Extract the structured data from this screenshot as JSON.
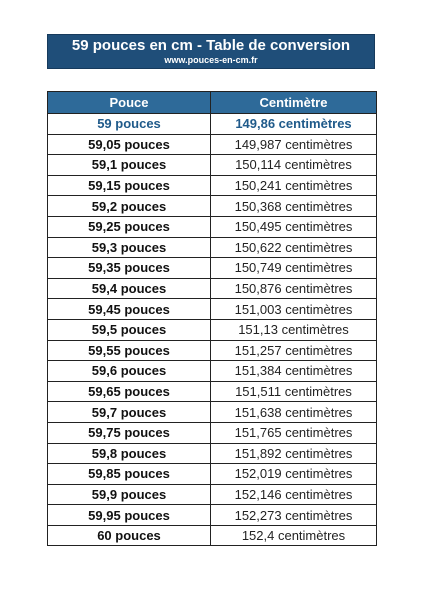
{
  "header": {
    "title": "59 pouces en cm - Table de conversion",
    "website": "www.pouces-en-cm.fr"
  },
  "table": {
    "columns": [
      "Pouce",
      "Centimètre"
    ],
    "rows": [
      [
        "59 pouces",
        "149,86 centimètres"
      ],
      [
        "59,05 pouces",
        "149,987 centimètres"
      ],
      [
        "59,1 pouces",
        "150,114 centimètres"
      ],
      [
        "59,15 pouces",
        "150,241 centimètres"
      ],
      [
        "59,2 pouces",
        "150,368 centimètres"
      ],
      [
        "59,25 pouces",
        "150,495 centimètres"
      ],
      [
        "59,3 pouces",
        "150,622 centimètres"
      ],
      [
        "59,35 pouces",
        "150,749 centimètres"
      ],
      [
        "59,4 pouces",
        "150,876 centimètres"
      ],
      [
        "59,45 pouces",
        "151,003 centimètres"
      ],
      [
        "59,5 pouces",
        "151,13 centimètres"
      ],
      [
        "59,55 pouces",
        "151,257 centimètres"
      ],
      [
        "59,6 pouces",
        "151,384 centimètres"
      ],
      [
        "59,65 pouces",
        "151,511 centimètres"
      ],
      [
        "59,7 pouces",
        "151,638 centimètres"
      ],
      [
        "59,75 pouces",
        "151,765 centimètres"
      ],
      [
        "59,8 pouces",
        "151,892 centimètres"
      ],
      [
        "59,85 pouces",
        "152,019 centimètres"
      ],
      [
        "59,9 pouces",
        "152,146 centimètres"
      ],
      [
        "59,95 pouces",
        "152,273 centimètres"
      ],
      [
        "60 pouces",
        "152,4 centimètres"
      ]
    ]
  },
  "colors": {
    "title_bg": "#1f4e79",
    "header_bg": "#2e6a99",
    "highlight_text": "#1f5a8a"
  }
}
